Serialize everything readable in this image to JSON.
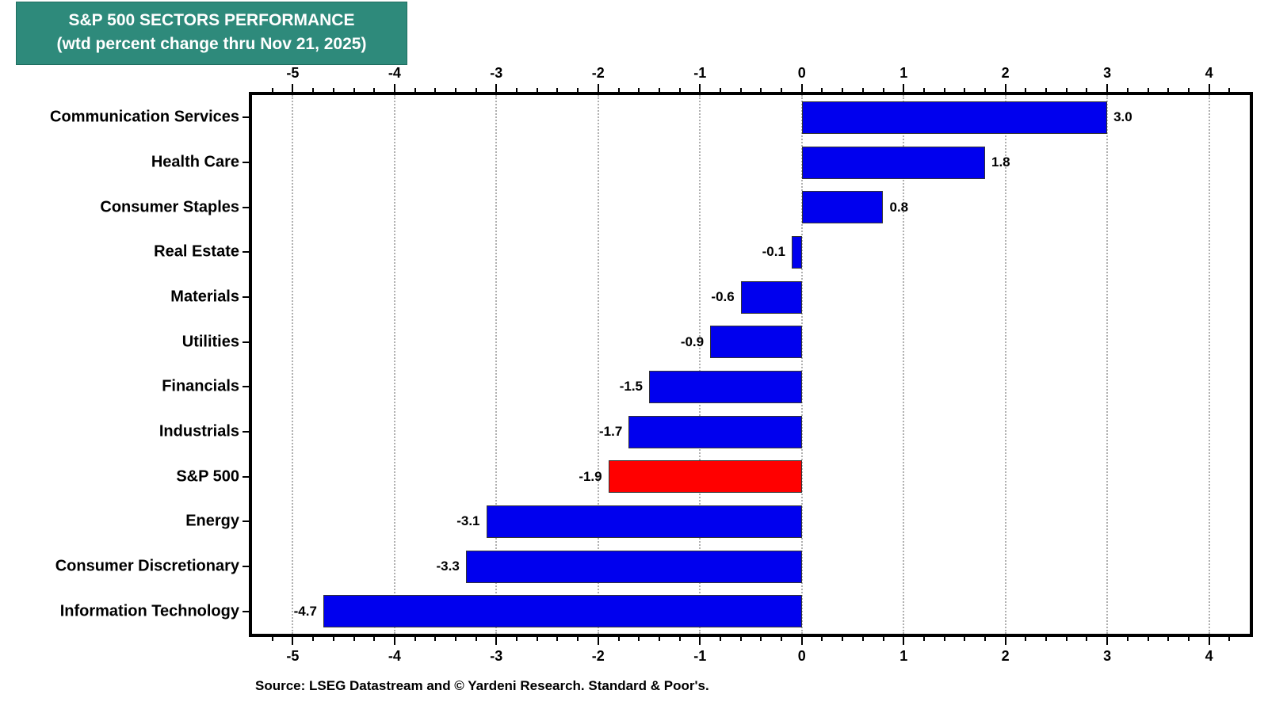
{
  "page": {
    "background": "#FFFFFF"
  },
  "title_box": {
    "line1": "S&P 500 SECTORS PERFORMANCE",
    "line2": "(wtd percent change thru Nov 21, 2025)",
    "bg_color": "#2E8A7B",
    "text_color": "#FFFFFF"
  },
  "source_note": "Source: LSEG Datastream and © Yardeni Research. Standard & Poor's.",
  "chart_data": {
    "type": "bar",
    "orientation": "horizontal",
    "title": "S&P 500 SECTORS PERFORMANCE (wtd percent change thru Nov 21, 2025)",
    "categories": [
      "Communication Services",
      "Health Care",
      "Consumer Staples",
      "Real Estate",
      "Materials",
      "Utilities",
      "Financials",
      "Industrials",
      "S&P 500",
      "Energy",
      "Consumer Discretionary",
      "Information Technology"
    ],
    "values": [
      3.0,
      1.8,
      0.8,
      -0.1,
      -0.6,
      -0.9,
      -1.5,
      -1.7,
      -1.9,
      -3.1,
      -3.3,
      -4.7
    ],
    "value_labels": [
      "3.0",
      "1.8",
      "0.8",
      "-0.1",
      "-0.6",
      "-0.9",
      "-1.5",
      "-1.7",
      "-1.9",
      "-3.1",
      "-3.3",
      "-4.7"
    ],
    "highlight_category": "S&P 500",
    "highlight_color": "#FF0000",
    "default_bar_color": "#0000EE",
    "bar_border_color": "#333333",
    "xlim": [
      -5.4,
      4.4
    ],
    "x_major_ticks": [
      -5,
      -4,
      -3,
      -2,
      -1,
      0,
      1,
      2,
      3,
      4
    ],
    "x_tick_labels": [
      "-5",
      "-4",
      "-3",
      "-2",
      "-1",
      "0",
      "1",
      "2",
      "3",
      "4"
    ],
    "minor_tick_step": 0.2,
    "grid": {
      "vertical_dotted": true,
      "color": "#B0B0B0"
    },
    "axes": {
      "tick_labels_position": "top-and-bottom",
      "ticks_direction": "out"
    }
  }
}
